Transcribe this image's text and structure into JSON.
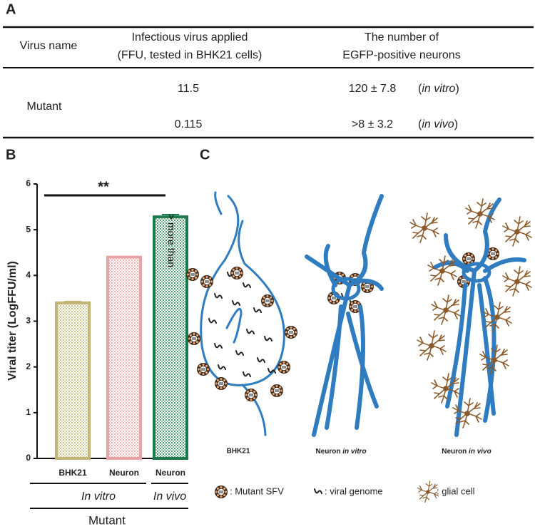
{
  "panel_labels": [
    "A",
    "B",
    "C"
  ],
  "table": {
    "header": [
      {
        "lines": [
          "Virus name"
        ]
      },
      {
        "lines": [
          "Infectious virus applied",
          "(FFU, tested in BHK21 cells)"
        ]
      },
      {
        "lines": [
          "The number of",
          "EGFP-positive neurons"
        ]
      }
    ],
    "row_label": "Mutant",
    "rows": [
      {
        "applied": 11.5,
        "neurons": "120 ± 7.8",
        "condition": {
          "open": "(",
          "text": "in vitro",
          "close": ")"
        }
      },
      {
        "applied": 0.115,
        "neurons": ">8 ± 3.2",
        "condition": {
          "open": "(",
          "text": "in vivo",
          "close": ")"
        }
      }
    ]
  },
  "chart_data": {
    "type": "bar",
    "y_label": "Viral titer (LogFFU/ml)",
    "categories": [
      "BHK21",
      "Neuron",
      "Neuron"
    ],
    "values": [
      3.4,
      4.4,
      5.28
    ],
    "errors": [
      0.03,
      0.01,
      0.05
    ],
    "colors": [
      "#c2b576",
      "#e9a3a3",
      "#1d7a4c"
    ],
    "ylim": [
      0,
      6
    ],
    "yticks": [
      0,
      1,
      2,
      3,
      4,
      5,
      6
    ],
    "groups": [
      "In vitro",
      "In vivo"
    ],
    "group_label": "Mutant",
    "annotation": "**",
    "bar_note": "> more than"
  },
  "diagram": {
    "labels": [
      {
        "main": "BHK21"
      },
      {
        "main": "Neuron",
        "italic": "in vitro"
      },
      {
        "main": "Neuron",
        "italic": "in vivo"
      }
    ],
    "legend": [
      ": Mutant SFV",
      ": viral genome",
      ": glial cell"
    ]
  }
}
